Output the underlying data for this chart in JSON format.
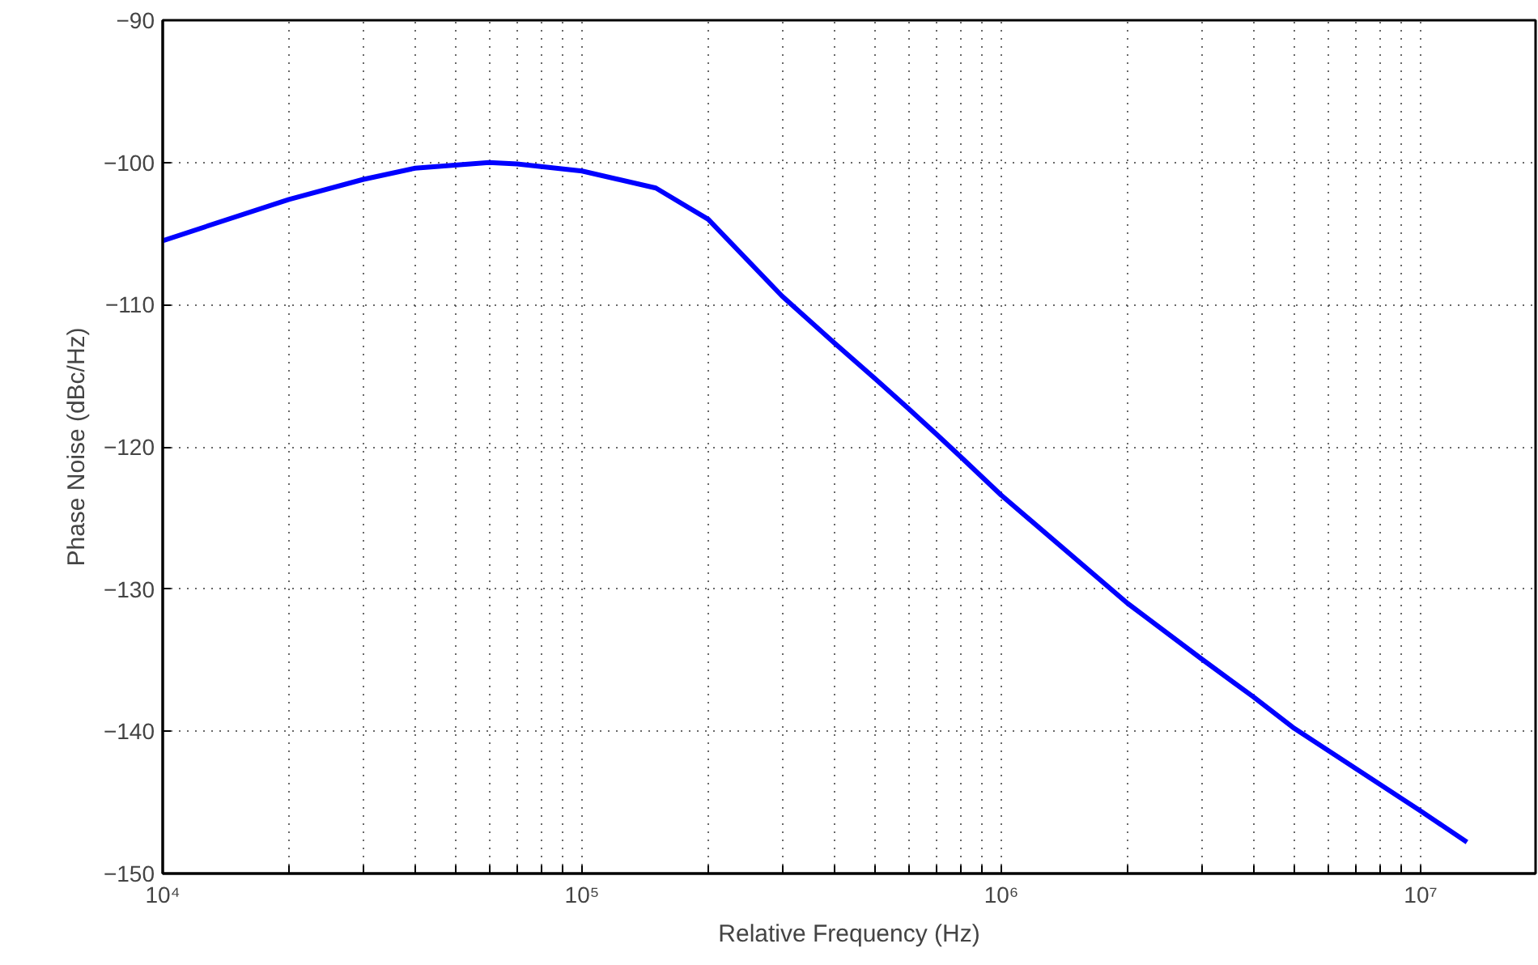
{
  "chart_data": {
    "type": "line",
    "xlabel": "Relative Frequency (Hz)",
    "ylabel": "Phase Noise (dBc/Hz)",
    "log": "x",
    "grid": true,
    "line_style": "solid",
    "xlim": [
      10000,
      18800000
    ],
    "ylim": [
      -150,
      -90
    ],
    "xticks": [
      {
        "value": 10000,
        "label": "10⁴"
      },
      {
        "value": 20000,
        "label": null
      },
      {
        "value": 30000,
        "label": null
      },
      {
        "value": 40000,
        "label": null
      },
      {
        "value": 50000,
        "label": null
      },
      {
        "value": 60000,
        "label": null
      },
      {
        "value": 70000,
        "label": null
      },
      {
        "value": 80000,
        "label": null
      },
      {
        "value": 90000,
        "label": null
      },
      {
        "value": 100000,
        "label": "10⁵"
      },
      {
        "value": 200000,
        "label": null
      },
      {
        "value": 300000,
        "label": null
      },
      {
        "value": 400000,
        "label": null
      },
      {
        "value": 500000,
        "label": null
      },
      {
        "value": 600000,
        "label": null
      },
      {
        "value": 700000,
        "label": null
      },
      {
        "value": 800000,
        "label": null
      },
      {
        "value": 900000,
        "label": null
      },
      {
        "value": 1000000,
        "label": "10⁶"
      },
      {
        "value": 2000000,
        "label": null
      },
      {
        "value": 3000000,
        "label": null
      },
      {
        "value": 4000000,
        "label": null
      },
      {
        "value": 5000000,
        "label": null
      },
      {
        "value": 6000000,
        "label": null
      },
      {
        "value": 7000000,
        "label": null
      },
      {
        "value": 8000000,
        "label": null
      },
      {
        "value": 9000000,
        "label": null
      },
      {
        "value": 10000000,
        "label": "10⁷"
      }
    ],
    "yticks": [
      -150,
      -140,
      -130,
      -120,
      -110,
      -100,
      -90
    ],
    "series": [
      {
        "color": "#0000ff",
        "x": [
          10000,
          20000,
          30000,
          40000,
          60000,
          70000,
          100000,
          150000,
          200000,
          300000,
          400000,
          500000,
          600000,
          700000,
          800000,
          1000000,
          2000000,
          3000000,
          4000000,
          5000000,
          10000000,
          12900000
        ],
        "values": [
          -105.5,
          -102.6,
          -101.2,
          -100.4,
          -100,
          -100.1,
          -100.6,
          -101.8,
          -104,
          -109.4,
          -112.7,
          -115.2,
          -117.3,
          -119.1,
          -120.7,
          -123.4,
          -131.0,
          -134.9,
          -137.6,
          -139.8,
          -145.6,
          -147.8
        ]
      }
    ]
  }
}
